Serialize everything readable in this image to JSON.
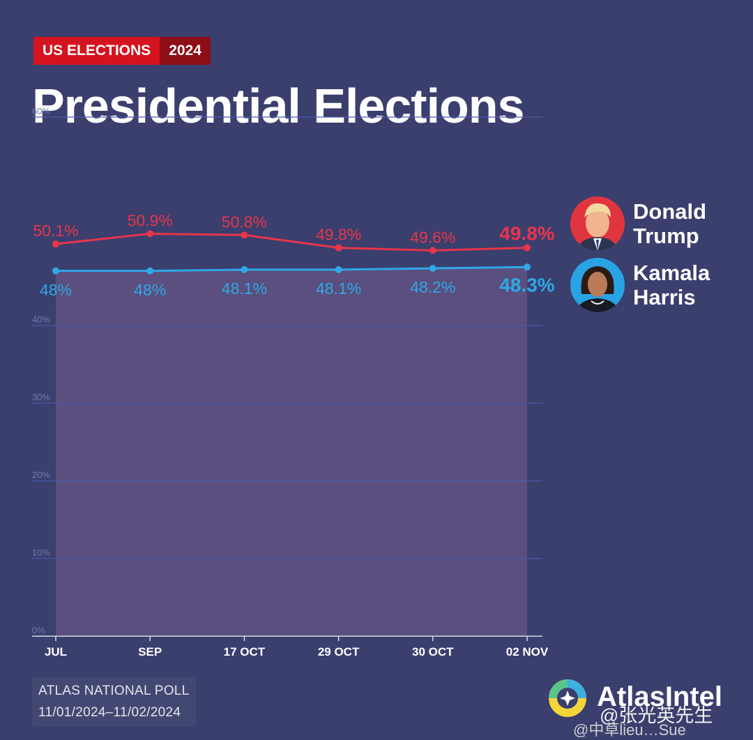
{
  "header": {
    "tag_left": "US ELECTIONS",
    "tag_right": "2024",
    "title": "Presidential Elections"
  },
  "candidates": [
    {
      "name_line1": "Donald",
      "name_line2": "Trump",
      "color": "#e8354a"
    },
    {
      "name_line1": "Kamala",
      "name_line2": "Harris",
      "color": "#2fa8e8"
    }
  ],
  "source": {
    "line1": "ATLAS NATIONAL POLL",
    "line2": "11/01/2024–11/02/2024"
  },
  "brand": {
    "name": "AtlasIntel"
  },
  "watermark": {
    "line1": "@张光英先生",
    "line2": "@中草lieu…Sue"
  },
  "chart_data": {
    "type": "line",
    "categories": [
      "JUL",
      "SEP",
      "17 OCT",
      "29 OCT",
      "30 OCT",
      "02 NOV"
    ],
    "series": [
      {
        "name": "Donald Trump",
        "color": "#e8354a",
        "values": [
          50.1,
          50.9,
          50.8,
          49.8,
          49.6,
          49.8
        ],
        "labels": [
          "50.1%",
          "50.9%",
          "50.8%",
          "49.8%",
          "49.6%",
          "49.8%"
        ]
      },
      {
        "name": "Kamala Harris",
        "color": "#2fa8e8",
        "values": [
          48,
          48,
          48.1,
          48.1,
          48.2,
          48.3
        ],
        "labels": [
          "48%",
          "48%",
          "48.1%",
          "48.1%",
          "48.2%",
          "48.3%"
        ]
      }
    ],
    "yticks": [
      "0%",
      "10%",
      "20%",
      "30%",
      "40%",
      "60%"
    ],
    "ytick_values": [
      0,
      10,
      20,
      30,
      40,
      60
    ],
    "ylim": [
      0,
      60
    ],
    "grid": true
  }
}
